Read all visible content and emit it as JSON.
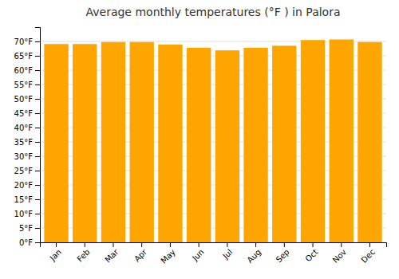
{
  "chart_data": {
    "type": "bar",
    "title": "Average monthly temperatures (°F ) in Palora",
    "categories": [
      "Jan",
      "Feb",
      "Mar",
      "Apr",
      "May",
      "Jun",
      "Jul",
      "Aug",
      "Sep",
      "Oct",
      "Nov",
      "Dec"
    ],
    "values": [
      69.1,
      69.1,
      69.8,
      69.8,
      68.9,
      67.8,
      66.9,
      67.8,
      68.5,
      70.5,
      70.7,
      69.8
    ],
    "color": "#FFA500",
    "ylim": [
      0,
      75
    ],
    "yticks": [
      {
        "value": 0,
        "label": "0°F"
      },
      {
        "value": 5,
        "label": "5°F"
      },
      {
        "value": 10,
        "label": "10°F"
      },
      {
        "value": 15,
        "label": "15°F"
      },
      {
        "value": 20,
        "label": "20°F"
      },
      {
        "value": 25,
        "label": "25°F"
      },
      {
        "value": 30,
        "label": "30°F"
      },
      {
        "value": 35,
        "label": "35°F"
      },
      {
        "value": 40,
        "label": "40°F"
      },
      {
        "value": 45,
        "label": "45°F"
      },
      {
        "value": 50,
        "label": "50°F"
      },
      {
        "value": 55,
        "label": "55°F"
      },
      {
        "value": 60,
        "label": "60°F"
      },
      {
        "value": 65,
        "label": "65°F"
      },
      {
        "value": 70,
        "label": "70°F"
      }
    ],
    "grid": true
  }
}
